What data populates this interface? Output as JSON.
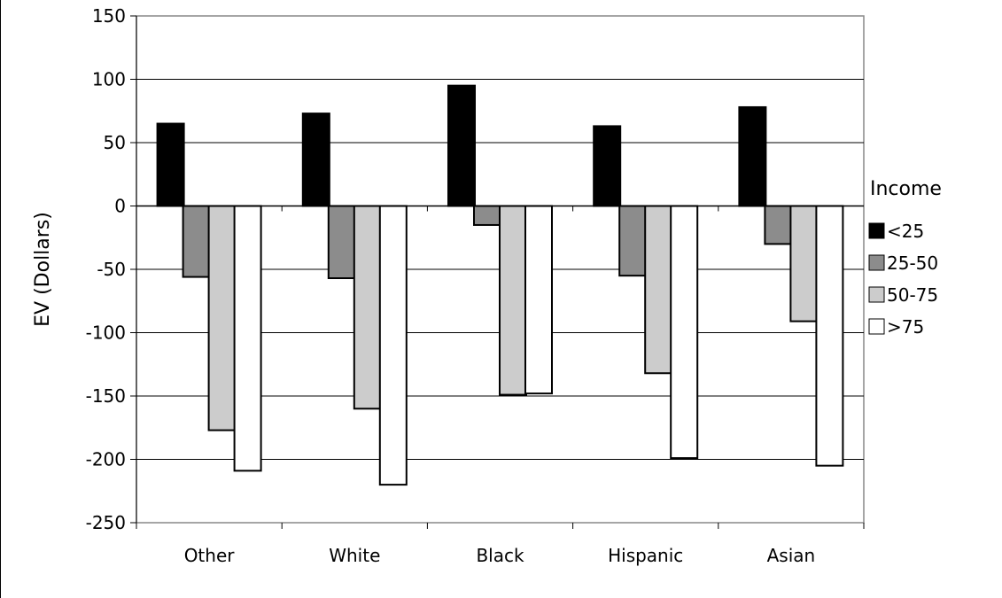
{
  "chart_data": {
    "type": "bar",
    "title": "",
    "xlabel": "",
    "ylabel": "EV (Dollars)",
    "ylim": [
      -250,
      150
    ],
    "yticks": [
      150,
      100,
      50,
      0,
      -50,
      -100,
      -150,
      -200,
      -250
    ],
    "grid": true,
    "legend_title": "Income",
    "legend_position": "right",
    "categories": [
      "Other",
      "White",
      "Black",
      "Hispanic",
      "Asian"
    ],
    "series": [
      {
        "name": "<25",
        "color": "#000000",
        "values": [
          65,
          73,
          95,
          63,
          78
        ]
      },
      {
        "name": "25-50",
        "color": "#8c8c8c",
        "values": [
          -56,
          -57,
          -15,
          -55,
          -30
        ]
      },
      {
        "name": "50-75",
        "color": "#cccccc",
        "values": [
          -177,
          -160,
          -149,
          -132,
          -91
        ]
      },
      {
        "name": ">75",
        "color": "#ffffff",
        "values": [
          -209,
          -220,
          -148,
          -199,
          -205
        ]
      }
    ]
  }
}
